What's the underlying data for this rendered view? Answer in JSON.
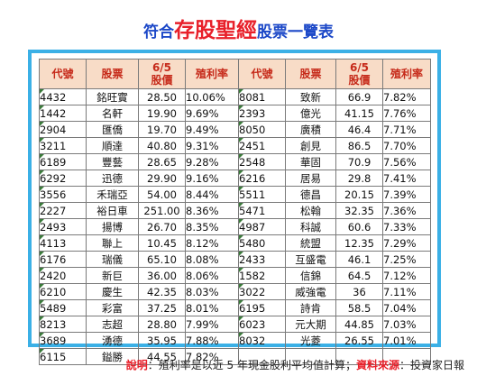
{
  "title": {
    "prefix": "符合",
    "main": "存股聖經",
    "suffix": "股票一覽表"
  },
  "headers": [
    "代號",
    "股票",
    "6/5 股價",
    "殖利率",
    "代號",
    "股票",
    "6/5 股價",
    "殖利率"
  ],
  "headers_split": {
    "price_line1": "6/5",
    "price_line2": "股價"
  },
  "left_rows": [
    {
      "code": "4432",
      "name": "銘旺實",
      "price": "28.50",
      "yield": "10.06%"
    },
    {
      "code": "1442",
      "name": "名軒",
      "price": "19.90",
      "yield": "9.69%"
    },
    {
      "code": "2904",
      "name": "匯僑",
      "price": "19.70",
      "yield": "9.49%"
    },
    {
      "code": "3211",
      "name": "順達",
      "price": "40.80",
      "yield": "9.31%"
    },
    {
      "code": "6189",
      "name": "豐藝",
      "price": "28.65",
      "yield": "9.28%"
    },
    {
      "code": "6292",
      "name": "迅德",
      "price": "29.90",
      "yield": "9.16%"
    },
    {
      "code": "3556",
      "name": "禾瑞亞",
      "price": "54.00",
      "yield": "8.44%"
    },
    {
      "code": "2227",
      "name": "裕日車",
      "price": "251.00",
      "yield": "8.36%"
    },
    {
      "code": "2493",
      "name": "揚博",
      "price": "26.70",
      "yield": "8.35%"
    },
    {
      "code": "4113",
      "name": "聯上",
      "price": "10.45",
      "yield": "8.12%"
    },
    {
      "code": "6176",
      "name": "瑞儀",
      "price": "65.10",
      "yield": "8.08%"
    },
    {
      "code": "2420",
      "name": "新巨",
      "price": "36.00",
      "yield": "8.06%"
    },
    {
      "code": "6210",
      "name": "慶生",
      "price": "42.35",
      "yield": "8.03%"
    },
    {
      "code": "5489",
      "name": "彩富",
      "price": "37.25",
      "yield": "8.01%"
    },
    {
      "code": "8213",
      "name": "志超",
      "price": "28.80",
      "yield": "7.99%"
    },
    {
      "code": "3689",
      "name": "湧德",
      "price": "35.95",
      "yield": "7.88%"
    },
    {
      "code": "6115",
      "name": "鎰勝",
      "price": "44.55",
      "yield": "7.82%"
    }
  ],
  "right_rows": [
    {
      "code": "8081",
      "name": "致新",
      "price": "66.9",
      "yield": "7.82%"
    },
    {
      "code": "2393",
      "name": "億光",
      "price": "41.15",
      "yield": "7.76%"
    },
    {
      "code": "8050",
      "name": "廣積",
      "price": "46.4",
      "yield": "7.71%"
    },
    {
      "code": "2451",
      "name": "創見",
      "price": "86.5",
      "yield": "7.70%"
    },
    {
      "code": "2548",
      "name": "華固",
      "price": "70.9",
      "yield": "7.56%"
    },
    {
      "code": "6216",
      "name": "居易",
      "price": "29.8",
      "yield": "7.41%"
    },
    {
      "code": "5511",
      "name": "德昌",
      "price": "20.15",
      "yield": "7.39%"
    },
    {
      "code": "5471",
      "name": "松翰",
      "price": "32.35",
      "yield": "7.36%"
    },
    {
      "code": "4987",
      "name": "科誠",
      "price": "60.6",
      "yield": "7.33%"
    },
    {
      "code": "5480",
      "name": "統盟",
      "price": "12.35",
      "yield": "7.29%"
    },
    {
      "code": "2433",
      "name": "互盛電",
      "price": "46.1",
      "yield": "7.25%"
    },
    {
      "code": "1582",
      "name": "信錦",
      "price": "64.5",
      "yield": "7.12%"
    },
    {
      "code": "3022",
      "name": "威強電",
      "price": "36",
      "yield": "7.11%"
    },
    {
      "code": "6195",
      "name": "詩肯",
      "price": "58.5",
      "yield": "7.04%"
    },
    {
      "code": "6023",
      "name": "元大期",
      "price": "44.85",
      "yield": "7.03%"
    },
    {
      "code": "8032",
      "name": "光菱",
      "price": "26.55",
      "yield": "7.01%"
    }
  ],
  "note": {
    "label1": "說明",
    "text1": "：殖利率是以近 5 年現金股利平均值計算；",
    "label2": "資料來源",
    "text2": "：投資家日報"
  },
  "colors": {
    "title": "#1c48c8",
    "title_accent": "#e8202a",
    "frame_border": "#3bb0e6",
    "header_bg": "#f8dcc7",
    "header_text": "#c62a1a"
  }
}
